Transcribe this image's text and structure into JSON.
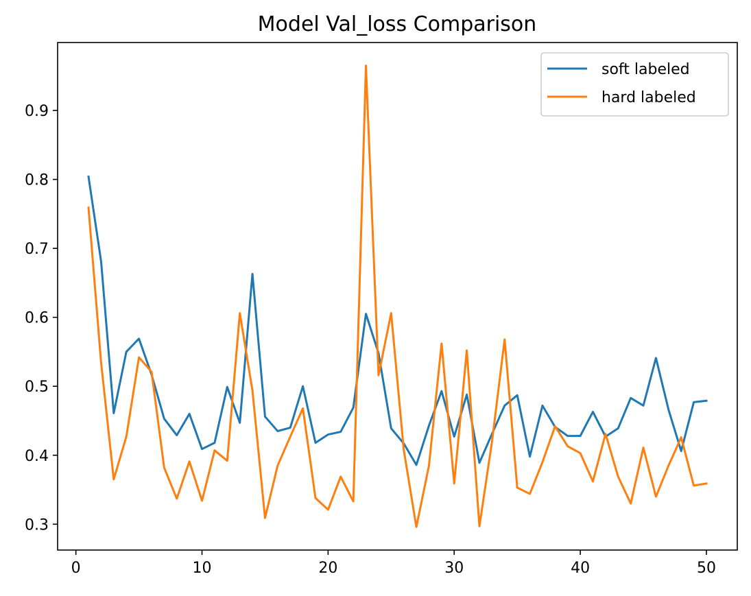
{
  "chart_data": {
    "type": "line",
    "title": "Model Val_loss Comparison",
    "xlabel": "",
    "ylabel": "",
    "xlim": [
      -1.45,
      52.45
    ],
    "ylim": [
      0.2625,
      0.9985
    ],
    "xticks": [
      0,
      10,
      20,
      30,
      40,
      50
    ],
    "xtick_labels": [
      "0",
      "10",
      "20",
      "30",
      "40",
      "50"
    ],
    "yticks": [
      0.3,
      0.4,
      0.5,
      0.6,
      0.7,
      0.8,
      0.9
    ],
    "ytick_labels": [
      "0.3",
      "0.4",
      "0.5",
      "0.6",
      "0.7",
      "0.8",
      "0.9"
    ],
    "grid": false,
    "legend_position": "top-right",
    "x": [
      1,
      2,
      3,
      4,
      5,
      6,
      7,
      8,
      9,
      10,
      11,
      12,
      13,
      14,
      15,
      16,
      17,
      18,
      19,
      20,
      21,
      22,
      23,
      24,
      25,
      26,
      27,
      28,
      29,
      30,
      31,
      32,
      33,
      34,
      35,
      36,
      37,
      38,
      39,
      40,
      41,
      42,
      43,
      44,
      45,
      46,
      47,
      48,
      49,
      50
    ],
    "series": [
      {
        "name": "soft labeled",
        "color": "#1f77b4",
        "values": [
          0.804,
          0.681,
          0.461,
          0.55,
          0.569,
          0.517,
          0.453,
          0.429,
          0.46,
          0.409,
          0.418,
          0.499,
          0.447,
          0.663,
          0.456,
          0.435,
          0.44,
          0.5,
          0.418,
          0.43,
          0.434,
          0.469,
          0.605,
          0.548,
          0.439,
          0.417,
          0.386,
          0.443,
          0.493,
          0.427,
          0.488,
          0.389,
          0.431,
          0.472,
          0.487,
          0.398,
          0.472,
          0.441,
          0.428,
          0.428,
          0.463,
          0.427,
          0.439,
          0.483,
          0.472,
          0.541,
          0.466,
          0.406,
          0.477,
          0.479
        ]
      },
      {
        "name": "hard labeled",
        "color": "#ff7f0e",
        "values": [
          0.759,
          0.534,
          0.365,
          0.427,
          0.542,
          0.521,
          0.382,
          0.337,
          0.391,
          0.334,
          0.407,
          0.392,
          0.606,
          0.494,
          0.309,
          0.385,
          0.427,
          0.468,
          0.338,
          0.321,
          0.369,
          0.333,
          0.965,
          0.516,
          0.606,
          0.408,
          0.296,
          0.385,
          0.562,
          0.359,
          0.552,
          0.297,
          0.42,
          0.568,
          0.353,
          0.344,
          0.39,
          0.442,
          0.413,
          0.403,
          0.362,
          0.431,
          0.369,
          0.33,
          0.411,
          0.34,
          0.385,
          0.426,
          0.356,
          0.359
        ]
      }
    ]
  }
}
